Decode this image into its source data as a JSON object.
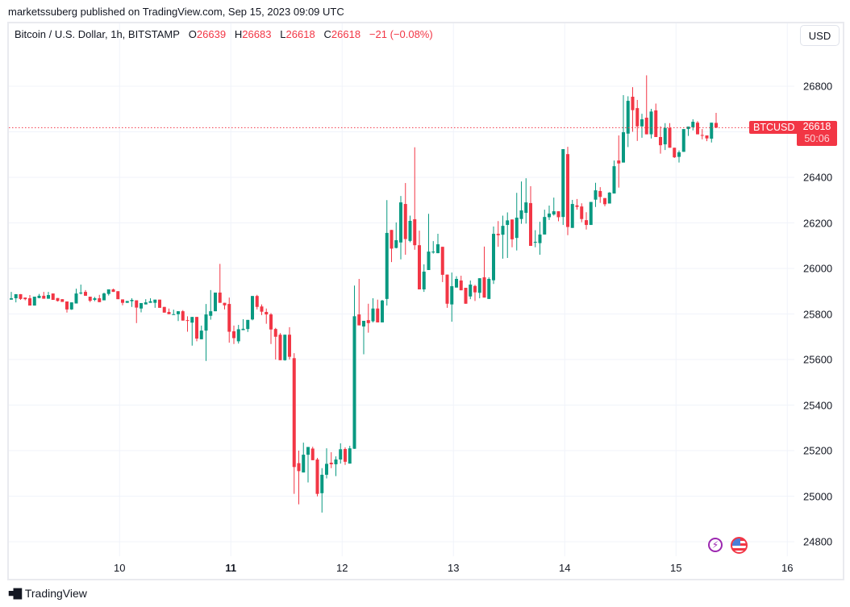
{
  "publisher_line": "marketssuberg published on TradingView.com, Sep 15, 2023 09:09 UTC",
  "legend": {
    "symbol": "Bitcoin / U.S. Dollar, 1h, BITSTAMP",
    "o_label": "O",
    "o_value": "26639",
    "h_label": "H",
    "h_value": "26683",
    "l_label": "L",
    "l_value": "26618",
    "c_label": "C",
    "c_value": "26618",
    "change": "−21 (−0.08%)"
  },
  "currency_button": "USD",
  "price_tag": {
    "symbol": "BTCUSD",
    "price": "26618",
    "countdown": "50:06"
  },
  "footer_brand": "TradingView",
  "icons": [
    "lightning-icon",
    "us-flag-icon",
    "tradingview-logo-icon"
  ],
  "colors": {
    "up": "#089981",
    "down": "#f23645",
    "grid": "#f0f3fa",
    "price_line": "#f23645"
  },
  "chart_data": {
    "type": "candlestick",
    "interval": "1h",
    "y_ticks": [
      26800,
      26400,
      26200,
      26000,
      25800,
      25600,
      25400,
      25200,
      25000,
      24800
    ],
    "x_ticks": [
      {
        "label": "10",
        "hour_index": 23,
        "bold": false
      },
      {
        "label": "11",
        "hour_index": 47,
        "bold": true
      },
      {
        "label": "12",
        "hour_index": 71,
        "bold": false
      },
      {
        "label": "13",
        "hour_index": 95,
        "bold": false
      },
      {
        "label": "14",
        "hour_index": 119,
        "bold": false
      },
      {
        "label": "15",
        "hour_index": 143,
        "bold": false
      },
      {
        "label": "16",
        "hour_index": 167,
        "bold": false
      }
    ],
    "ylim": [
      24750,
      27000
    ],
    "last_price": 26618,
    "grid": true,
    "ohlc": [
      [
        25863,
        25897,
        25863,
        25869
      ],
      [
        25869,
        25887,
        25851,
        25887
      ],
      [
        25887,
        25887,
        25862,
        25866
      ],
      [
        25872,
        25872,
        25860,
        25865
      ],
      [
        25869,
        25883,
        25837,
        25837
      ],
      [
        25837,
        25876,
        25837,
        25876
      ],
      [
        25870,
        25888,
        25869,
        25880
      ],
      [
        25880,
        25897,
        25867,
        25867
      ],
      [
        25867,
        25897,
        25867,
        25883
      ],
      [
        25890,
        25890,
        25862,
        25862
      ],
      [
        25870,
        25870,
        25855,
        25857
      ],
      [
        25865,
        25865,
        25853,
        25853
      ],
      [
        25855,
        25855,
        25806,
        25820
      ],
      [
        25820,
        25851,
        25818,
        25851
      ],
      [
        25846,
        25911,
        25846,
        25890
      ],
      [
        25890,
        25929,
        25886,
        25894
      ],
      [
        25897,
        25905,
        25880,
        25880
      ],
      [
        25876,
        25876,
        25852,
        25858
      ],
      [
        25862,
        25875,
        25856,
        25869
      ],
      [
        25869,
        25884,
        25852,
        25852
      ],
      [
        25860,
        25894,
        25860,
        25890
      ],
      [
        25888,
        25908,
        25881,
        25908
      ],
      [
        25908,
        25911,
        25897,
        25897
      ],
      [
        25900,
        25900,
        25865,
        25865
      ],
      [
        25864,
        25864,
        25838,
        25849
      ],
      [
        25849,
        25857,
        25849,
        25857
      ],
      [
        25856,
        25869,
        25831,
        25862
      ],
      [
        25860,
        25860,
        25760,
        25828
      ],
      [
        25824,
        25848,
        25807,
        25848
      ],
      [
        25842,
        25865,
        25842,
        25851
      ],
      [
        25849,
        25869,
        25849,
        25856
      ],
      [
        25849,
        25863,
        25827,
        25863
      ],
      [
        25863,
        25863,
        25827,
        25827
      ],
      [
        25831,
        25831,
        25806,
        25806
      ],
      [
        25809,
        25824,
        25799,
        25799
      ],
      [
        25797,
        25819,
        25797,
        25799
      ],
      [
        25799,
        25812,
        25769,
        25812
      ],
      [
        25812,
        25817,
        25771,
        25771
      ],
      [
        25773,
        25790,
        25722,
        25771
      ],
      [
        25762,
        25787,
        25661,
        25787
      ],
      [
        25787,
        25787,
        25680,
        25692
      ],
      [
        25689,
        25749,
        25689,
        25727
      ],
      [
        25727,
        25844,
        25594,
        25798
      ],
      [
        25792,
        25905,
        25775,
        25812
      ],
      [
        25812,
        25894,
        25812,
        25894
      ],
      [
        25894,
        26020,
        25849,
        25849
      ],
      [
        25849,
        25849,
        25820,
        25838
      ],
      [
        25844,
        25872,
        25674,
        25722
      ],
      [
        25724,
        25749,
        25668,
        25694
      ],
      [
        25680,
        25752,
        25670,
        25733
      ],
      [
        25729,
        25777,
        25729,
        25735
      ],
      [
        25734,
        25774,
        25721,
        25774
      ],
      [
        25776,
        25879,
        25772,
        25879
      ],
      [
        25879,
        25884,
        25820,
        25831
      ],
      [
        25833,
        25842,
        25795,
        25810
      ],
      [
        25809,
        25824,
        25757,
        25798
      ],
      [
        25798,
        25804,
        25668,
        25732
      ],
      [
        25734,
        25739,
        25600,
        25700
      ],
      [
        25709,
        25716,
        25597,
        25597
      ],
      [
        25597,
        25709,
        25595,
        25709
      ],
      [
        25709,
        25742,
        25600,
        25612
      ],
      [
        25606,
        25628,
        25010,
        25128
      ],
      [
        25145,
        25200,
        24964,
        25110
      ],
      [
        25104,
        25235,
        25104,
        25182
      ],
      [
        25182,
        25216,
        25060,
        25216
      ],
      [
        25209,
        25217,
        25158,
        25158
      ],
      [
        25161,
        25168,
        24999,
        25010
      ],
      [
        25013,
        25123,
        24928,
        25094
      ],
      [
        25094,
        25210,
        25078,
        25142
      ],
      [
        25147,
        25193,
        25123,
        25140
      ],
      [
        25140,
        25175,
        25088,
        25161
      ],
      [
        25161,
        25232,
        25143,
        25206
      ],
      [
        25207,
        25214,
        25137,
        25151
      ],
      [
        25143,
        25221,
        25143,
        25210
      ],
      [
        25208,
        25925,
        25208,
        25790
      ],
      [
        25798,
        25954,
        25750,
        25750
      ],
      [
        25745,
        25770,
        25623,
        25770
      ],
      [
        25773,
        25845,
        25718,
        25760
      ],
      [
        25768,
        25869,
        25763,
        25824
      ],
      [
        25824,
        25863,
        25763,
        25763
      ],
      [
        25763,
        25862,
        25763,
        25859
      ],
      [
        25866,
        26300,
        25837,
        26156
      ],
      [
        26169,
        26169,
        26028,
        26087
      ],
      [
        26090,
        26202,
        26088,
        26124
      ],
      [
        26114,
        26318,
        26040,
        26290
      ],
      [
        26283,
        26375,
        26060,
        26129
      ],
      [
        26121,
        26232,
        26115,
        26209
      ],
      [
        26216,
        26532,
        26082,
        26102
      ],
      [
        26102,
        26166,
        25908,
        25908
      ],
      [
        25908,
        26018,
        25897,
        25986
      ],
      [
        25993,
        26240,
        25993,
        26074
      ],
      [
        26070,
        26120,
        26065,
        26074
      ],
      [
        26067,
        26152,
        26067,
        26106
      ],
      [
        26095,
        26095,
        25940,
        25972
      ],
      [
        25973,
        25973,
        25827,
        25845
      ],
      [
        25842,
        25982,
        25766,
        25922
      ],
      [
        25916,
        25966,
        25916,
        25954
      ],
      [
        25947,
        25968,
        25904,
        25904
      ],
      [
        25915,
        25915,
        25845,
        25845
      ],
      [
        25877,
        25947,
        25865,
        25929
      ],
      [
        25923,
        25928,
        25857,
        25895
      ],
      [
        25893,
        25957,
        25869,
        25957
      ],
      [
        25961,
        26096,
        25872,
        25872
      ],
      [
        25866,
        25961,
        25866,
        25954
      ],
      [
        25948,
        26184,
        25932,
        26152
      ],
      [
        26152,
        26208,
        26095,
        26146
      ],
      [
        26148,
        26232,
        26043,
        26187
      ],
      [
        26191,
        26246,
        26046,
        26211
      ],
      [
        26215,
        26215,
        26093,
        26128
      ],
      [
        26134,
        26332,
        26079,
        26223
      ],
      [
        26217,
        26382,
        26196,
        26255
      ],
      [
        26244,
        26396,
        26197,
        26290
      ],
      [
        26287,
        26361,
        26099,
        26099
      ],
      [
        26113,
        26168,
        26093,
        26117
      ],
      [
        26111,
        26205,
        26060,
        26149
      ],
      [
        26149,
        26258,
        26149,
        26226
      ],
      [
        26225,
        26276,
        26213,
        26241
      ],
      [
        26237,
        26311,
        26232,
        26251
      ],
      [
        26251,
        26251,
        26207,
        26225
      ],
      [
        26226,
        26524,
        26191,
        26524
      ],
      [
        26502,
        26534,
        26146,
        26182
      ],
      [
        26178,
        26301,
        26178,
        26283
      ],
      [
        26277,
        26305,
        26258,
        26270
      ],
      [
        26272,
        26286,
        26203,
        26217
      ],
      [
        26212,
        26247,
        26171,
        26191
      ],
      [
        26191,
        26292,
        26191,
        26292
      ],
      [
        26302,
        26376,
        26270,
        26343
      ],
      [
        26340,
        26357,
        26288,
        26314
      ],
      [
        26309,
        26309,
        26273,
        26282
      ],
      [
        26285,
        26335,
        26285,
        26333
      ],
      [
        26329,
        26474,
        26329,
        26449
      ],
      [
        26474,
        26584,
        26355,
        26461
      ],
      [
        26465,
        26761,
        26465,
        26598
      ],
      [
        26592,
        26756,
        26533,
        26736
      ],
      [
        26754,
        26796,
        26600,
        26695
      ],
      [
        26704,
        26740,
        26560,
        26624
      ],
      [
        26624,
        26679,
        26574,
        26655
      ],
      [
        26662,
        26848,
        26589,
        26589
      ],
      [
        26589,
        26701,
        26571,
        26689
      ],
      [
        26694,
        26724,
        26577,
        26577
      ],
      [
        26577,
        26624,
        26504,
        26541
      ],
      [
        26545,
        26638,
        26520,
        26617
      ],
      [
        26617,
        26638,
        26530,
        26530
      ],
      [
        26530,
        26530,
        26485,
        26488
      ],
      [
        26490,
        26518,
        26465,
        26510
      ],
      [
        26512,
        26612,
        26512,
        26612
      ],
      [
        26612,
        26623,
        26582,
        26623
      ],
      [
        26620,
        26655,
        26606,
        26644
      ],
      [
        26640,
        26647,
        26589,
        26589
      ],
      [
        26586,
        26612,
        26567,
        26584
      ],
      [
        26584,
        26584,
        26559,
        26571
      ],
      [
        26570,
        26640,
        26553,
        26640
      ],
      [
        26639,
        26683,
        26618,
        26618
      ]
    ]
  }
}
